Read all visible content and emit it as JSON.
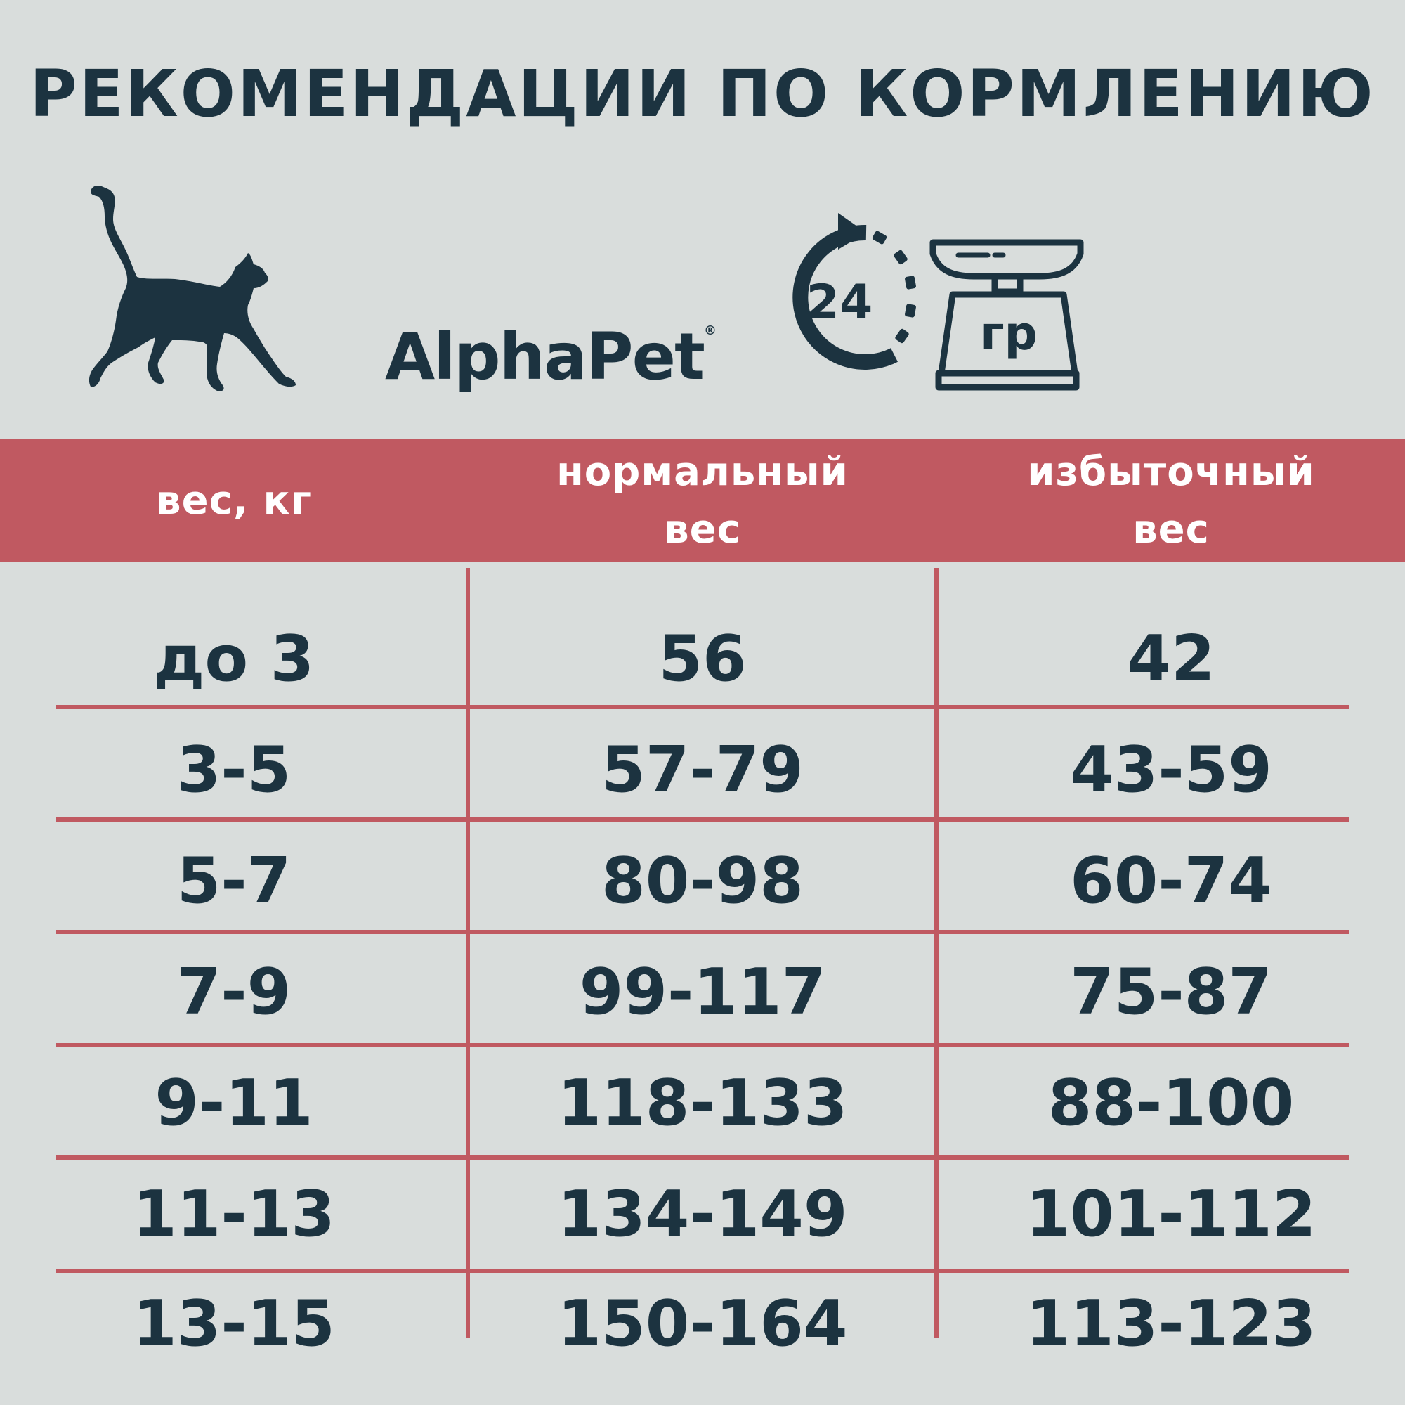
{
  "title": "РЕКОМЕНДАЦИИ ПО КОРМЛЕНИЮ",
  "brand": {
    "name": "AlphaPet",
    "registered_mark": "®"
  },
  "icons": {
    "cat": "cat-silhouette-icon",
    "clock": "24h-clock-icon",
    "scale": "kitchen-scale-icon"
  },
  "clock_label": "24",
  "scale_label": "гр",
  "colors": {
    "accent": "#c05961",
    "text": "#1c3340",
    "background": "#d9dddc"
  },
  "table": {
    "headers": [
      "вес, кг",
      "нормальный\nвес",
      "избыточный\nвес"
    ],
    "rows": [
      [
        "до 3",
        "56",
        "42"
      ],
      [
        "3-5",
        "57-79",
        "43-59"
      ],
      [
        "5-7",
        "80-98",
        "60-74"
      ],
      [
        "7-9",
        "99-117",
        "75-87"
      ],
      [
        "9-11",
        "118-133",
        "88-100"
      ],
      [
        "11-13",
        "134-149",
        "101-112"
      ],
      [
        "13-15",
        "150-164",
        "113-123"
      ]
    ]
  }
}
